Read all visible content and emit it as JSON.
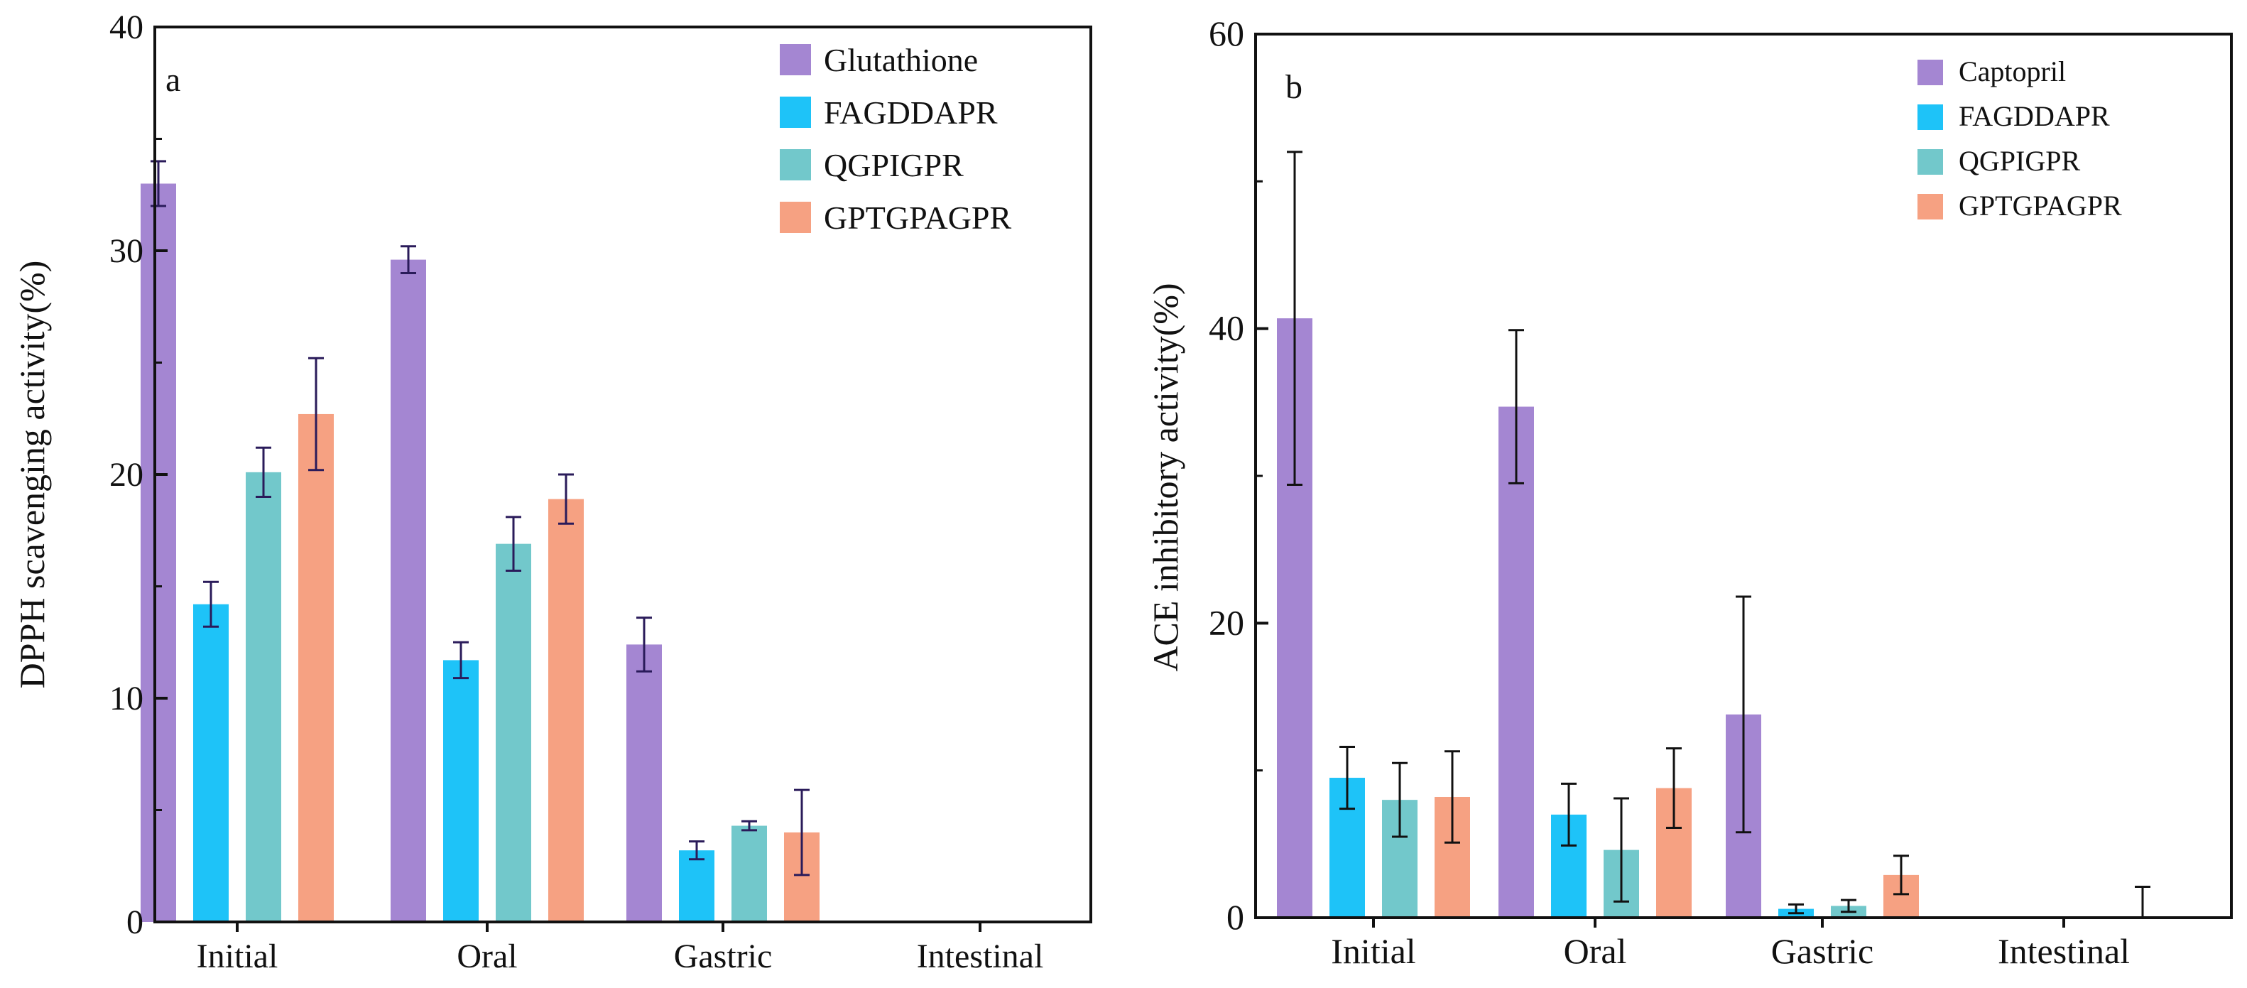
{
  "colors": {
    "purple": "#A486D2",
    "blue": "#1EC3F8",
    "teal": "#72C8CB",
    "salmon": "#F6A182",
    "axis": "#111111",
    "error_bar_dark": "#2A1B5A",
    "error_bar": "#111111"
  },
  "chart_data": [
    {
      "type": "bar",
      "panel_label": "a",
      "title": "",
      "xlabel": "",
      "ylabel": "DPPH scavenging activity(%)",
      "ylim": [
        0,
        40
      ],
      "yticks": [
        "0",
        "10",
        "20",
        "30",
        "40"
      ],
      "categories": [
        "Initial",
        "Oral",
        "Gastric",
        "Intestinal"
      ],
      "legend_position": "top-right",
      "grid": false,
      "series": [
        {
          "name": "Glutathione",
          "color": "#A486D2",
          "values": [
            33.0,
            29.6,
            12.4,
            null
          ],
          "errors": [
            1.0,
            0.6,
            1.2,
            null
          ]
        },
        {
          "name": "FAGDDAPR",
          "color": "#1EC3F8",
          "values": [
            14.2,
            11.7,
            3.2,
            null
          ],
          "errors": [
            1.0,
            0.8,
            0.4,
            null
          ]
        },
        {
          "name": "QGPIGPR",
          "color": "#72C8CB",
          "values": [
            20.1,
            16.9,
            4.3,
            null
          ],
          "errors": [
            1.1,
            1.2,
            0.2,
            null
          ]
        },
        {
          "name": "GPTGPAGPR",
          "color": "#F6A182",
          "values": [
            22.7,
            18.9,
            4.0,
            null
          ],
          "errors": [
            2.5,
            1.1,
            1.9,
            null
          ]
        }
      ]
    },
    {
      "type": "bar",
      "panel_label": "b",
      "title": "",
      "xlabel": "",
      "ylabel": "ACE inhibitory activity(%)",
      "ylim": [
        0,
        60
      ],
      "yticks": [
        "0",
        "20",
        "40",
        "60"
      ],
      "categories": [
        "Initial",
        "Oral",
        "Gastric",
        "Intestinal"
      ],
      "legend_position": "top-right",
      "grid": false,
      "series": [
        {
          "name": "Captopril",
          "color": "#A486D2",
          "values": [
            40.7,
            34.7,
            13.8,
            null
          ],
          "errors": [
            11.3,
            5.2,
            8.0,
            null
          ]
        },
        {
          "name": "FAGDDAPR",
          "color": "#1EC3F8",
          "values": [
            9.5,
            7.0,
            0.6,
            null
          ],
          "errors": [
            2.1,
            2.1,
            0.3,
            null
          ]
        },
        {
          "name": "QGPIGPR",
          "color": "#72C8CB",
          "values": [
            8.0,
            4.6,
            0.8,
            null
          ],
          "errors": [
            2.5,
            3.5,
            0.4,
            null
          ]
        },
        {
          "name": "GPTGPAGPR",
          "color": "#F6A182",
          "values": [
            8.2,
            8.8,
            2.9,
            0.0
          ],
          "errors": [
            3.1,
            2.7,
            1.3,
            2.1
          ]
        }
      ]
    }
  ]
}
